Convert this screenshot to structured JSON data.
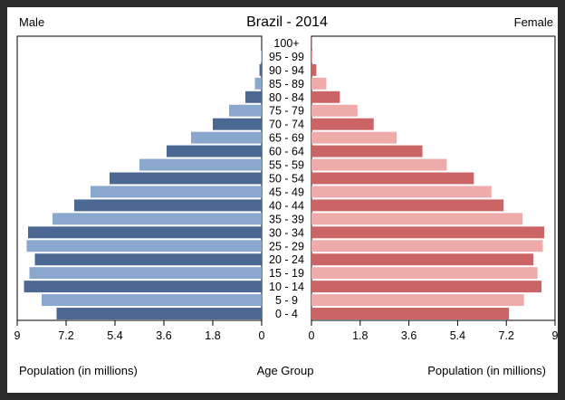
{
  "chart_data": {
    "type": "bar",
    "title": "Brazil - 2014",
    "left_label": "Male",
    "right_label": "Female",
    "xlabel_left": "Population (in millions)",
    "xlabel_center": "Age Group",
    "xlabel_right": "Population (in millions)",
    "xlim": [
      0,
      9
    ],
    "x_ticks_left": [
      "9",
      "7.2",
      "5.4",
      "3.6",
      "1.8",
      "0"
    ],
    "x_ticks_right": [
      "0",
      "1.8",
      "3.6",
      "5.4",
      "7.2",
      "9"
    ],
    "categories": [
      "100+",
      "95 - 99",
      "90 - 94",
      "85 - 89",
      "80 - 84",
      "75 - 79",
      "70 - 74",
      "65 - 69",
      "60 - 64",
      "55 - 59",
      "50 - 54",
      "45 - 49",
      "40 - 44",
      "35 - 39",
      "30 - 34",
      "25 - 29",
      "20 - 24",
      "15 - 19",
      "10 - 14",
      "5 - 9",
      "0 - 4"
    ],
    "series": [
      {
        "name": "Male",
        "values": [
          0.0,
          0.02,
          0.08,
          0.25,
          0.6,
          1.2,
          1.8,
          2.6,
          3.5,
          4.5,
          5.6,
          6.3,
          6.9,
          7.7,
          8.6,
          8.65,
          8.35,
          8.55,
          8.75,
          8.1,
          7.55
        ]
      },
      {
        "name": "Female",
        "values": [
          0.01,
          0.04,
          0.18,
          0.55,
          1.05,
          1.7,
          2.3,
          3.15,
          4.1,
          5.0,
          6.0,
          6.65,
          7.1,
          7.8,
          8.6,
          8.55,
          8.2,
          8.35,
          8.5,
          7.85,
          7.3
        ]
      }
    ],
    "colors": {
      "male_dark": "#4a6891",
      "male_light": "#8aa8cd",
      "female_dark": "#cb6565",
      "female_light": "#efaaaa"
    }
  }
}
